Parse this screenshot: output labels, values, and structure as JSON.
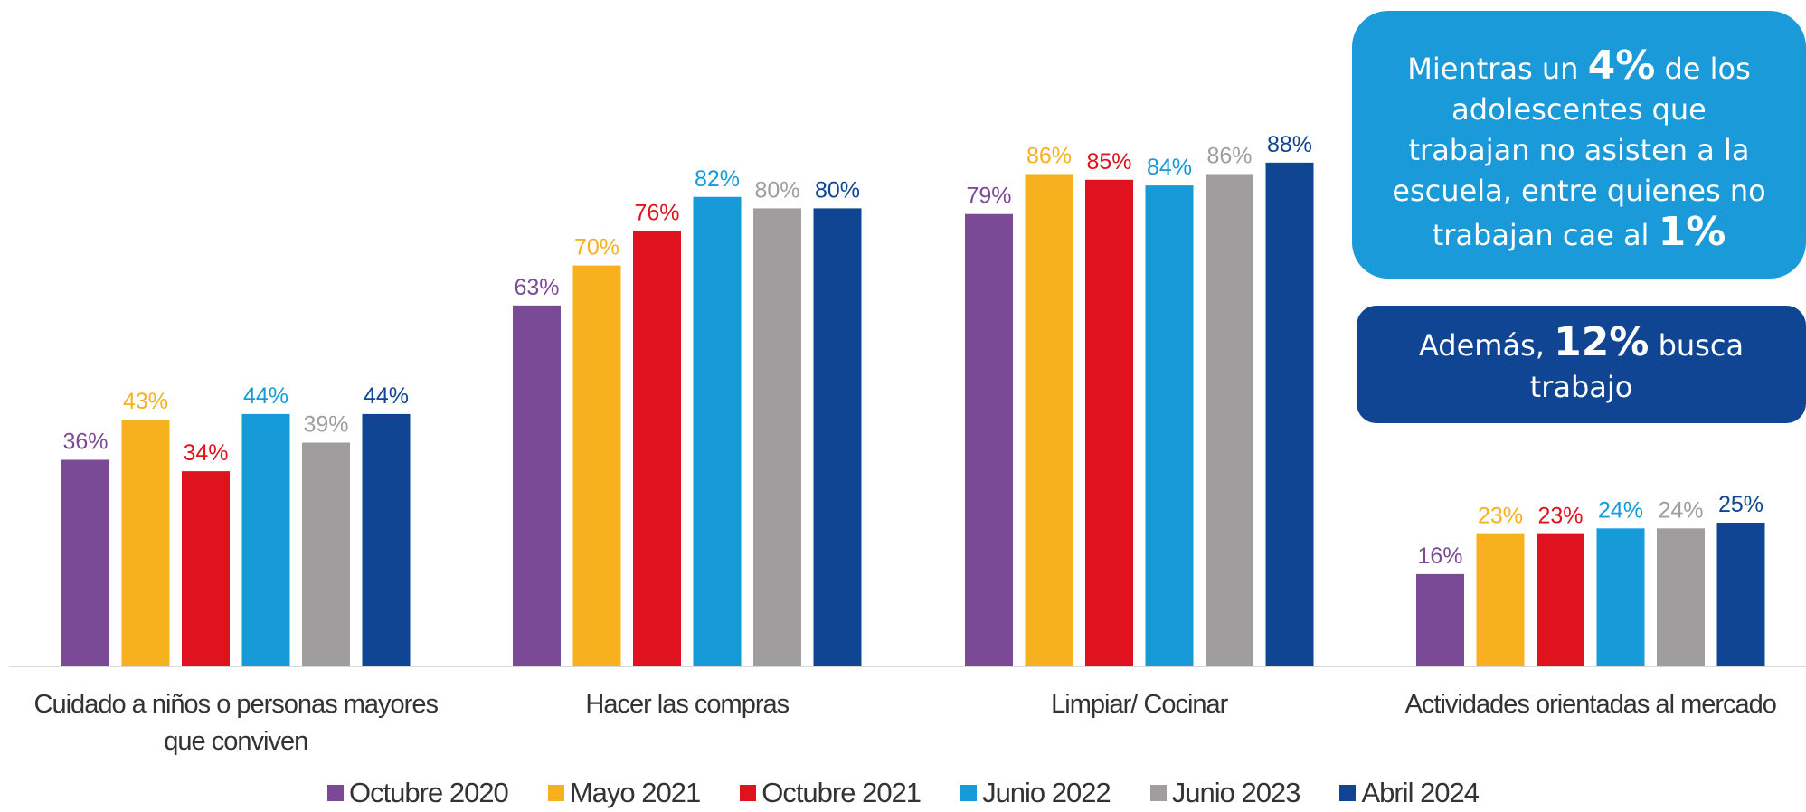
{
  "chart_data": {
    "type": "bar",
    "categories": [
      [
        "Cuidado a niños o personas mayores",
        "que conviven"
      ],
      [
        "Hacer las compras"
      ],
      [
        "Limpiar/ Cocinar"
      ],
      [
        "Actividades orientadas al mercado"
      ]
    ],
    "series": [
      {
        "name": "Octubre 2020",
        "color": "#7b4a96",
        "values": [
          36,
          63,
          79,
          16
        ]
      },
      {
        "name": "Mayo 2021",
        "color": "#f7b11e",
        "values": [
          43,
          70,
          86,
          23
        ]
      },
      {
        "name": "Octubre 2021",
        "color": "#e0121f",
        "values": [
          34,
          76,
          85,
          23
        ]
      },
      {
        "name": "Junio 2022",
        "color": "#179ad8",
        "values": [
          44,
          82,
          84,
          24
        ]
      },
      {
        "name": "Junio 2023",
        "color": "#a09d9e",
        "values": [
          39,
          80,
          86,
          24
        ]
      },
      {
        "name": "Abril 2024",
        "color": "#0f4592",
        "values": [
          44,
          80,
          88,
          25
        ]
      }
    ],
    "value_suffix": "%",
    "ylim": [
      0,
      100
    ],
    "grid": false,
    "legend_position": "bottom"
  },
  "callouts": {
    "first": {
      "line1_pre": "Mientras un ",
      "line1_bold": "4%",
      "line1_post": " de los",
      "line2": "adolescentes que",
      "line3": "trabajan no asisten a la",
      "line4": "escuela, entre quienes no",
      "line5_pre": "trabajan cae al ",
      "line5_bold": "1%"
    },
    "second": {
      "pre": "Además, ",
      "bold": "12%",
      "post": " busca",
      "line2": "trabajo"
    }
  },
  "colors": {
    "callout_light": "#1a9ad8",
    "callout_dark": "#0f4592",
    "axis": "#d9d9d9",
    "category_text": "#333333"
  }
}
